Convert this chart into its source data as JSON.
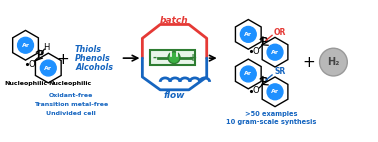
{
  "bg_color": "#ffffff",
  "ar_circle_color": "#1e90ff",
  "ar_text_color": "#ffffff",
  "blue_text_color": "#1565C0",
  "red_text_color": "#e53935",
  "green_color": "#2e7d32",
  "green_fill": "#3cb043",
  "black_text_color": "#000000",
  "gray_circle_color": "#b8b8b8",
  "hex_edge_color": "#000000",
  "blue_lines": [
    "Oxidant-free",
    "Transition metal-free",
    "Undivided cell"
  ],
  "right_blue_lines": [
    ">50 examples",
    "10 gram-scale synthesis"
  ],
  "figsize": [
    3.78,
    1.42
  ],
  "dpi": 100
}
